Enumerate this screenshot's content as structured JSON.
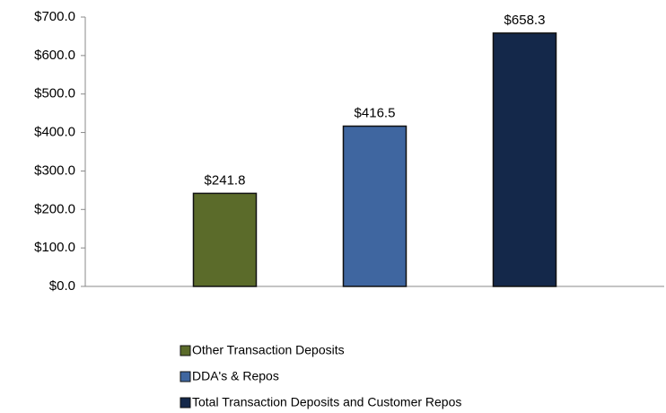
{
  "chart_data": {
    "type": "bar",
    "categories": [
      null
    ],
    "series": [
      {
        "name": "Other Transaction Deposits",
        "color": "#5b6b2a",
        "values": [
          241.8
        ],
        "value_labels": [
          "$241.8"
        ]
      },
      {
        "name": "DDA's & Repos",
        "color": "#3f66a0",
        "values": [
          416.5
        ],
        "value_labels": [
          "$416.5"
        ]
      },
      {
        "name": "Total Transaction Deposits and Customer Repos",
        "color": "#14284a",
        "values": [
          658.3
        ],
        "value_labels": [
          "$658.3"
        ]
      }
    ],
    "ylim": [
      0,
      700
    ],
    "yticks": [
      {
        "value": 0,
        "label": "$0.0"
      },
      {
        "value": 100,
        "label": "$100.0"
      },
      {
        "value": 200,
        "label": "$200.0"
      },
      {
        "value": 300,
        "label": "$300.0"
      },
      {
        "value": 400,
        "label": "$400.0"
      },
      {
        "value": 500,
        "label": "$500.0"
      },
      {
        "value": 600,
        "label": "$600.0"
      },
      {
        "value": 700,
        "label": "$700.0"
      }
    ],
    "grid": false,
    "legend": "bottom"
  }
}
